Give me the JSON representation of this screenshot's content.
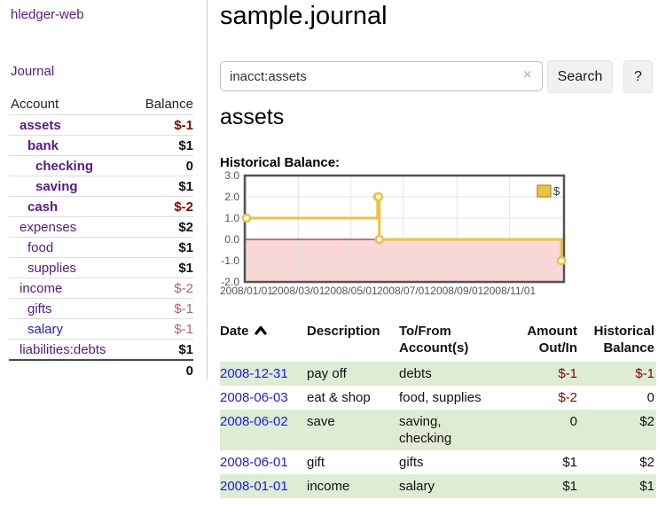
{
  "app": {
    "brand": "hledger-web"
  },
  "sidebar": {
    "nav": {
      "journal": "Journal"
    },
    "accounts_table": {
      "headers": {
        "account": "Account",
        "balance": "Balance"
      },
      "rows": [
        {
          "name": "assets",
          "depth": 1,
          "bold": true,
          "link": "purple",
          "balance": "$-1",
          "bal_cls": "neg-strong"
        },
        {
          "name": "bank",
          "depth": 2,
          "bold": true,
          "link": "purple",
          "balance": "$1",
          "bal_cls": "pos"
        },
        {
          "name": "checking",
          "depth": 3,
          "bold": true,
          "link": "purple",
          "balance": "0",
          "bal_cls": "zero"
        },
        {
          "name": "saving",
          "depth": 3,
          "bold": true,
          "link": "purple",
          "balance": "$1",
          "bal_cls": "pos"
        },
        {
          "name": "cash",
          "depth": 2,
          "bold": true,
          "link": "purple",
          "balance": "$-2",
          "bal_cls": "neg-strong"
        },
        {
          "name": "expenses",
          "depth": 1,
          "bold": false,
          "link": "purple",
          "balance": "$2",
          "bal_cls": "pos"
        },
        {
          "name": "food",
          "depth": 2,
          "bold": false,
          "link": "purple",
          "balance": "$1",
          "bal_cls": "pos"
        },
        {
          "name": "supplies",
          "depth": 2,
          "bold": false,
          "link": "purple",
          "balance": "$1",
          "bal_cls": "pos"
        },
        {
          "name": "income",
          "depth": 1,
          "bold": false,
          "link": "purple",
          "balance": "$-2",
          "bal_cls": "neg-soft"
        },
        {
          "name": "gifts",
          "depth": 2,
          "bold": false,
          "link": "purple",
          "balance": "$-1",
          "bal_cls": "neg-soft"
        },
        {
          "name": "salary",
          "depth": 2,
          "bold": false,
          "link": "blue",
          "balance": "$-1",
          "bal_cls": "neg-soft"
        },
        {
          "name": "liabilities:debts",
          "depth": 1,
          "bold": false,
          "link": "purple",
          "balance": "$1",
          "bal_cls": "pos"
        }
      ],
      "total": "0"
    }
  },
  "header": {
    "title": "sample.journal"
  },
  "search": {
    "value": "inacct:assets",
    "clear_label": "×",
    "button_label": "Search",
    "help_label": "?"
  },
  "account_page": {
    "heading": "assets",
    "chart_label": "Historical Balance:"
  },
  "chart_data": {
    "type": "line",
    "step": true,
    "title": "Historical Balance:",
    "x_range": [
      "2008-01-01",
      "2008-12-31"
    ],
    "ylim": [
      -2,
      3
    ],
    "y_ticks": [
      3.0,
      2.0,
      1.0,
      0.0,
      -1.0,
      -2.0
    ],
    "x_ticks": [
      "2008/01/01",
      "2008/03/01",
      "2008/05/01",
      "2008/07/01",
      "2008/09/01",
      "2008/11/01"
    ],
    "series": [
      {
        "name": "$",
        "color": "#edc240",
        "points": [
          [
            "2008-01-01",
            1
          ],
          [
            "2008-06-01",
            2
          ],
          [
            "2008-06-02",
            2
          ],
          [
            "2008-06-03",
            0
          ],
          [
            "2008-12-31",
            -1
          ]
        ]
      }
    ],
    "legend": {
      "label": "$",
      "position": "top-right"
    },
    "grid": true,
    "zero_line_color": "#8b0000",
    "negative_region_color": "#f9d7d7",
    "border_color": "#545454",
    "tick_label_color": "#545454"
  },
  "register": {
    "headers": {
      "date": "Date",
      "description": "Description",
      "tofrom": "To/From\nAccount(s)",
      "amount": "Amount\nOut/In",
      "balance": "Historical\nBalance"
    },
    "rows": [
      {
        "date": "2008-12-31",
        "description": "pay off",
        "accounts": "debts",
        "amount": "$-1",
        "amount_neg": true,
        "balance": "$-1",
        "balance_neg": true,
        "shaded": true
      },
      {
        "date": "2008-06-03",
        "description": "eat & shop",
        "accounts": "food, supplies",
        "amount": "$-2",
        "amount_neg": true,
        "balance": "0",
        "balance_neg": false,
        "shaded": false
      },
      {
        "date": "2008-06-02",
        "description": "save",
        "accounts": "saving,\nchecking",
        "amount": "0",
        "amount_neg": false,
        "balance": "$2",
        "balance_neg": false,
        "shaded": true
      },
      {
        "date": "2008-06-01",
        "description": "gift",
        "accounts": "gifts",
        "amount": "$1",
        "amount_neg": false,
        "balance": "$2",
        "balance_neg": false,
        "shaded": false
      },
      {
        "date": "2008-01-01",
        "description": "income",
        "accounts": "salary",
        "amount": "$1",
        "amount_neg": false,
        "balance": "$1",
        "balance_neg": false,
        "shaded": true
      }
    ]
  }
}
